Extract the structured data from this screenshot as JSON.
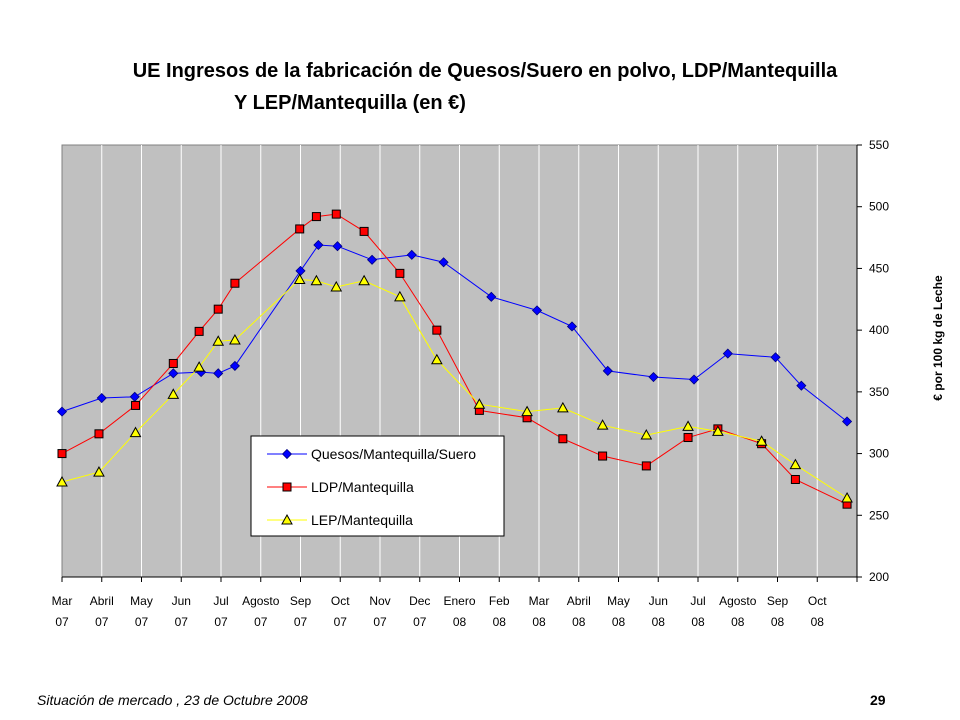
{
  "title_line1": "UE Ingresos de la fabricación de Quesos/Suero en polvo, LDP/Mantequilla",
  "title_line2": "Y  LEP/Mantequilla (en €)",
  "footer_left": "Situación de mercado , 23 de  Octubre 2008",
  "footer_right": "29",
  "chart_data": {
    "type": "line",
    "ylabel": "€ por 100 kg de Leche",
    "ylim": [
      200,
      550
    ],
    "yticks": [
      200,
      250,
      300,
      350,
      400,
      450,
      500,
      550
    ],
    "x_categories": [
      [
        "Mar",
        "07"
      ],
      [
        "Abril",
        "07"
      ],
      [
        "May",
        "07"
      ],
      [
        "Jun",
        "07"
      ],
      [
        "Jul",
        "07"
      ],
      [
        "Agosto",
        "07"
      ],
      [
        "Sep",
        "07"
      ],
      [
        "Oct",
        "07"
      ],
      [
        "Nov",
        "07"
      ],
      [
        "Dec",
        "07"
      ],
      [
        "Enero",
        "08"
      ],
      [
        "Feb",
        "08"
      ],
      [
        "Mar",
        "08"
      ],
      [
        "Abril",
        "08"
      ],
      [
        "May",
        "08"
      ],
      [
        "Jun",
        "08"
      ],
      [
        "Jul",
        "08"
      ],
      [
        "Agosto",
        "08"
      ],
      [
        "Sep",
        "08"
      ],
      [
        "Oct",
        "08"
      ]
    ],
    "x_unit": "months since Mar 07",
    "legend_position": "bottom-center-inside",
    "grid": "vertical",
    "plot_background": "#c0c0c0",
    "series": [
      {
        "name": "Quesos/Mantequilla/Suero",
        "color": "#0000ff",
        "marker": "diamond",
        "marker_fill": "#0000ff",
        "points": [
          [
            0,
            334
          ],
          [
            1,
            345
          ],
          [
            1.83,
            346
          ],
          [
            2.8,
            365
          ],
          [
            3.5,
            366
          ],
          [
            3.93,
            365
          ],
          [
            4.35,
            371
          ],
          [
            6,
            448
          ],
          [
            6.45,
            469
          ],
          [
            6.93,
            468
          ],
          [
            7.8,
            457
          ],
          [
            8.8,
            461
          ],
          [
            9.6,
            455
          ],
          [
            10.8,
            427
          ],
          [
            11.95,
            416
          ],
          [
            12.83,
            403
          ],
          [
            13.73,
            367
          ],
          [
            14.88,
            362
          ],
          [
            15.9,
            360
          ],
          [
            16.75,
            381
          ],
          [
            17.95,
            378
          ],
          [
            18.6,
            355
          ],
          [
            19.75,
            326
          ]
        ]
      },
      {
        "name": "LDP/Mantequilla",
        "color": "#ff0000",
        "marker": "square",
        "marker_fill": "#ff0000",
        "points": [
          [
            0,
            300
          ],
          [
            0.93,
            316
          ],
          [
            1.85,
            339
          ],
          [
            2.8,
            373
          ],
          [
            3.45,
            399
          ],
          [
            3.93,
            417
          ],
          [
            4.35,
            438
          ],
          [
            5.98,
            482
          ],
          [
            6.4,
            492
          ],
          [
            6.9,
            494
          ],
          [
            7.6,
            480
          ],
          [
            8.5,
            446
          ],
          [
            9.43,
            400
          ],
          [
            10.5,
            335
          ],
          [
            11.7,
            329
          ],
          [
            12.6,
            312
          ],
          [
            13.6,
            298
          ],
          [
            14.7,
            290
          ],
          [
            15.75,
            313
          ],
          [
            16.5,
            320
          ],
          [
            17.6,
            308
          ],
          [
            18.45,
            279
          ],
          [
            19.75,
            259
          ]
        ]
      },
      {
        "name": "LEP/Mantequilla",
        "color": "#ffff00",
        "marker": "triangle",
        "marker_fill": "#ffff00",
        "points": [
          [
            0,
            277
          ],
          [
            0.93,
            285
          ],
          [
            1.85,
            317
          ],
          [
            2.8,
            348
          ],
          [
            3.45,
            370
          ],
          [
            3.93,
            391
          ],
          [
            4.35,
            392
          ],
          [
            5.98,
            441
          ],
          [
            6.4,
            440
          ],
          [
            6.9,
            435
          ],
          [
            7.6,
            440
          ],
          [
            8.5,
            427
          ],
          [
            9.43,
            376
          ],
          [
            10.5,
            340
          ],
          [
            11.7,
            334
          ],
          [
            12.6,
            337
          ],
          [
            13.6,
            323
          ],
          [
            14.7,
            315
          ],
          [
            15.75,
            322
          ],
          [
            16.5,
            318
          ],
          [
            17.6,
            310
          ],
          [
            18.45,
            291
          ],
          [
            19.75,
            264
          ]
        ]
      }
    ]
  }
}
